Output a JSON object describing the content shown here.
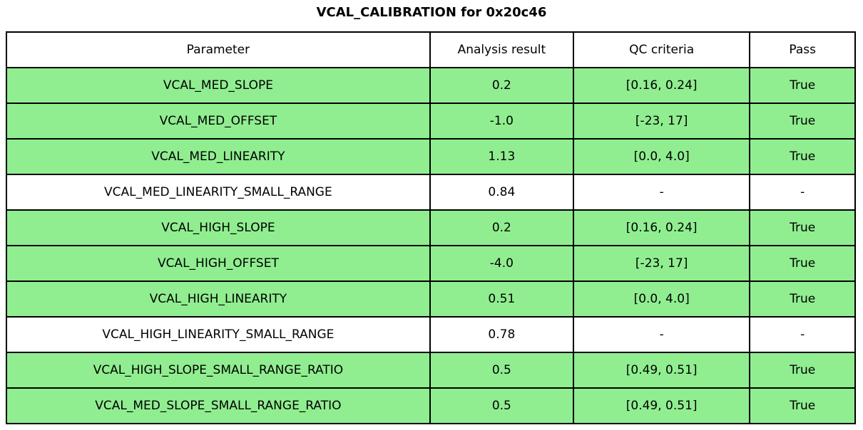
{
  "title": "VCAL_CALIBRATION for 0x20c46",
  "colors": {
    "pass_row_green": "#90EE90",
    "neutral_row_white": "#FFFFFF",
    "border_black": "#000000",
    "text_black": "#000000"
  },
  "chart_data": {
    "type": "table",
    "title": "VCAL_CALIBRATION for 0x20c46",
    "columns": [
      "Parameter",
      "Analysis result",
      "QC criteria",
      "Pass"
    ],
    "rows": [
      {
        "parameter": "VCAL_MED_SLOPE",
        "analysis_result": "0.2",
        "qc_criteria": "[0.16, 0.24]",
        "pass": "True",
        "highlighted": true
      },
      {
        "parameter": "VCAL_MED_OFFSET",
        "analysis_result": "-1.0",
        "qc_criteria": "[-23, 17]",
        "pass": "True",
        "highlighted": true
      },
      {
        "parameter": "VCAL_MED_LINEARITY",
        "analysis_result": "1.13",
        "qc_criteria": "[0.0, 4.0]",
        "pass": "True",
        "highlighted": true
      },
      {
        "parameter": "VCAL_MED_LINEARITY_SMALL_RANGE",
        "analysis_result": "0.84",
        "qc_criteria": "-",
        "pass": "-",
        "highlighted": false
      },
      {
        "parameter": "VCAL_HIGH_SLOPE",
        "analysis_result": "0.2",
        "qc_criteria": "[0.16, 0.24]",
        "pass": "True",
        "highlighted": true
      },
      {
        "parameter": "VCAL_HIGH_OFFSET",
        "analysis_result": "-4.0",
        "qc_criteria": "[-23, 17]",
        "pass": "True",
        "highlighted": true
      },
      {
        "parameter": "VCAL_HIGH_LINEARITY",
        "analysis_result": "0.51",
        "qc_criteria": "[0.0, 4.0]",
        "pass": "True",
        "highlighted": true
      },
      {
        "parameter": "VCAL_HIGH_LINEARITY_SMALL_RANGE",
        "analysis_result": "0.78",
        "qc_criteria": "-",
        "pass": "-",
        "highlighted": false
      },
      {
        "parameter": "VCAL_HIGH_SLOPE_SMALL_RANGE_RATIO",
        "analysis_result": "0.5",
        "qc_criteria": "[0.49, 0.51]",
        "pass": "True",
        "highlighted": true
      },
      {
        "parameter": "VCAL_MED_SLOPE_SMALL_RANGE_RATIO",
        "analysis_result": "0.5",
        "qc_criteria": "[0.49, 0.51]",
        "pass": "True",
        "highlighted": true
      }
    ]
  }
}
